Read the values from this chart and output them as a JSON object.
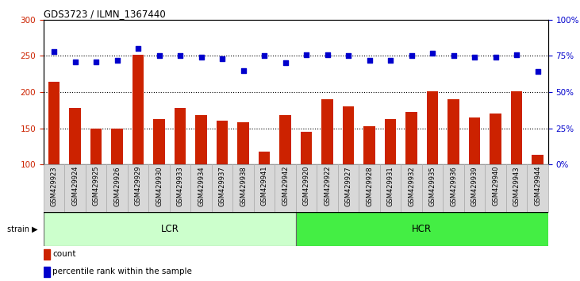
{
  "title": "GDS3723 / ILMN_1367440",
  "samples": [
    "GSM429923",
    "GSM429924",
    "GSM429925",
    "GSM429926",
    "GSM429929",
    "GSM429930",
    "GSM429933",
    "GSM429934",
    "GSM429937",
    "GSM429938",
    "GSM429941",
    "GSM429942",
    "GSM429920",
    "GSM429922",
    "GSM429927",
    "GSM429928",
    "GSM429931",
    "GSM429932",
    "GSM429935",
    "GSM429936",
    "GSM429939",
    "GSM429940",
    "GSM429943",
    "GSM429944"
  ],
  "counts": [
    214,
    178,
    150,
    150,
    252,
    163,
    178,
    168,
    160,
    158,
    118,
    168,
    145,
    190,
    180,
    153,
    163,
    173,
    201,
    190,
    165,
    170,
    201,
    113
  ],
  "pct_ranks": [
    78,
    71,
    71,
    72,
    80,
    75,
    75,
    74,
    73,
    65,
    75,
    70,
    76,
    76,
    75,
    72,
    72,
    75,
    77,
    75,
    74,
    74,
    76,
    64
  ],
  "lcr_count": 12,
  "hcr_count": 12,
  "ylim_left": [
    100,
    300
  ],
  "ylim_right": [
    0,
    100
  ],
  "yticks_left": [
    100,
    150,
    200,
    250,
    300
  ],
  "yticks_right": [
    0,
    25,
    50,
    75,
    100
  ],
  "ytick_labels_right": [
    "0%",
    "25%",
    "50%",
    "75%",
    "100%"
  ],
  "bar_color": "#cc2200",
  "dot_color": "#0000cc",
  "lcr_color": "#ccffcc",
  "hcr_color": "#44ee44",
  "strain_label_lcr": "LCR",
  "strain_label_hcr": "HCR",
  "legend_count": "count",
  "legend_pct": "percentile rank within the sample",
  "bg_color": "#ffffff",
  "tick_label_color_left": "#cc2200",
  "tick_label_color_right": "#0000cc",
  "hgrid_at": [
    150,
    200,
    250
  ],
  "xlabel_strain": "strain"
}
